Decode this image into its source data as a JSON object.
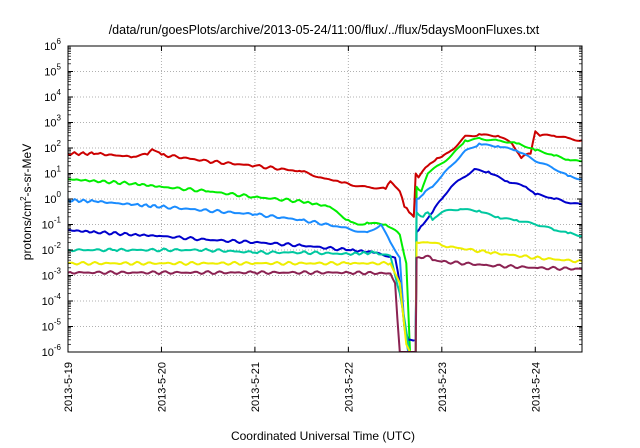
{
  "chart_data": {
    "type": "line",
    "title": "/data/run/goesPlots/archive/2013-05-24/11:00/flux/../flux/5daysMoonFluxes.txt",
    "xlabel": "Coordinated Universal Time (UTC)",
    "ylabel": "protons/cm²-s-sr-MeV",
    "ylabel_parts": [
      "protons/cm",
      "2",
      "-s-sr-MeV"
    ],
    "yscale": "log",
    "ylim": [
      1e-06,
      1000000.0
    ],
    "xlim": [
      0,
      5.5
    ],
    "x_unit": "days since 2013-5-19 00:00",
    "xticks": [
      {
        "x": 0,
        "label": "2013-5-19"
      },
      {
        "x": 1,
        "label": "2013-5-20"
      },
      {
        "x": 2,
        "label": "2013-5-21"
      },
      {
        "x": 3,
        "label": "2013-5-22"
      },
      {
        "x": 4,
        "label": "2013-5-23"
      },
      {
        "x": 5,
        "label": "2013-5-24"
      }
    ],
    "yticks": [
      {
        "exp": "-6"
      },
      {
        "exp": "-5"
      },
      {
        "exp": "-4"
      },
      {
        "exp": "-3"
      },
      {
        "exp": "-2"
      },
      {
        "exp": "-1"
      },
      {
        "exp": "0"
      },
      {
        "exp": "1"
      },
      {
        "exp": "2"
      },
      {
        "exp": "3"
      },
      {
        "exp": "4"
      },
      {
        "exp": "5"
      },
      {
        "exp": "6"
      }
    ],
    "grid": true,
    "series": [
      {
        "color": "#cc0000",
        "points": [
          [
            0,
            60
          ],
          [
            0.3,
            60
          ],
          [
            0.7,
            45
          ],
          [
            0.85,
            55
          ],
          [
            0.9,
            90
          ],
          [
            1.0,
            55
          ],
          [
            1.5,
            30
          ],
          [
            2.0,
            20
          ],
          [
            2.5,
            12
          ],
          [
            2.7,
            7
          ],
          [
            3.0,
            4
          ],
          [
            3.2,
            3
          ],
          [
            3.4,
            2.5
          ],
          [
            3.45,
            5
          ],
          [
            3.55,
            2
          ],
          [
            3.6,
            0.5
          ],
          [
            3.65,
            0.3
          ],
          [
            3.7,
            0.2
          ],
          [
            3.72,
            10
          ],
          [
            3.75,
            7
          ],
          [
            3.85,
            20
          ],
          [
            3.95,
            40
          ],
          [
            4.0,
            45
          ],
          [
            4.1,
            80
          ],
          [
            4.25,
            300
          ],
          [
            4.4,
            350
          ],
          [
            4.6,
            300
          ],
          [
            4.75,
            150
          ],
          [
            4.85,
            40
          ],
          [
            4.95,
            60
          ],
          [
            5.0,
            450
          ],
          [
            5.05,
            300
          ],
          [
            5.2,
            300
          ],
          [
            5.35,
            250
          ],
          [
            5.5,
            200
          ]
        ]
      },
      {
        "color": "#00ee00",
        "points": [
          [
            0,
            6
          ],
          [
            0.3,
            5
          ],
          [
            0.7,
            4
          ],
          [
            1.0,
            3
          ],
          [
            1.5,
            2
          ],
          [
            2.0,
            1.2
          ],
          [
            2.5,
            0.8
          ],
          [
            2.8,
            0.5
          ],
          [
            3.0,
            0.15
          ],
          [
            3.1,
            0.1
          ],
          [
            3.2,
            0.12
          ],
          [
            3.4,
            0.1
          ],
          [
            3.55,
            0.04
          ],
          [
            3.62,
            0.003
          ],
          [
            3.66,
            1e-06
          ],
          [
            3.72,
            1e-06
          ],
          [
            3.73,
            3
          ],
          [
            3.78,
            2
          ],
          [
            3.85,
            10
          ],
          [
            4.0,
            25
          ],
          [
            4.1,
            50
          ],
          [
            4.25,
            200
          ],
          [
            4.4,
            250
          ],
          [
            4.6,
            200
          ],
          [
            4.8,
            150
          ],
          [
            5.0,
            80
          ],
          [
            5.2,
            50
          ],
          [
            5.35,
            35
          ],
          [
            5.5,
            30
          ]
        ]
      },
      {
        "color": "#1a8cff",
        "points": [
          [
            0,
            0.9
          ],
          [
            0.3,
            0.8
          ],
          [
            0.7,
            0.6
          ],
          [
            1.0,
            0.5
          ],
          [
            1.5,
            0.35
          ],
          [
            2.0,
            0.25
          ],
          [
            2.5,
            0.15
          ],
          [
            3.0,
            0.07
          ],
          [
            3.2,
            0.05
          ],
          [
            3.35,
            0.1
          ],
          [
            3.45,
            0.02
          ],
          [
            3.55,
            0.005
          ],
          [
            3.6,
            1e-05
          ],
          [
            3.64,
            1e-06
          ],
          [
            3.72,
            1e-06
          ],
          [
            3.73,
            1
          ],
          [
            3.8,
            1.5
          ],
          [
            3.9,
            3
          ],
          [
            4.0,
            8
          ],
          [
            4.1,
            20
          ],
          [
            4.25,
            80
          ],
          [
            4.4,
            150
          ],
          [
            4.6,
            120
          ],
          [
            4.8,
            80
          ],
          [
            5.0,
            30
          ],
          [
            5.2,
            15
          ],
          [
            5.35,
            8
          ],
          [
            5.5,
            6
          ]
        ]
      },
      {
        "color": "#0000cc",
        "points": [
          [
            0,
            0.06
          ],
          [
            0.3,
            0.05
          ],
          [
            0.7,
            0.04
          ],
          [
            1.0,
            0.035
          ],
          [
            1.5,
            0.025
          ],
          [
            2.0,
            0.02
          ],
          [
            2.5,
            0.015
          ],
          [
            3.0,
            0.01
          ],
          [
            3.3,
            0.008
          ],
          [
            3.5,
            0.005
          ],
          [
            3.55,
            0.0005
          ],
          [
            3.6,
            1e-05
          ],
          [
            3.64,
            3e-06
          ],
          [
            3.72,
            3e-06
          ],
          [
            3.73,
            0.05
          ],
          [
            3.8,
            0.1
          ],
          [
            3.9,
            0.3
          ],
          [
            4.0,
            1
          ],
          [
            4.1,
            3
          ],
          [
            4.2,
            6
          ],
          [
            4.35,
            15
          ],
          [
            4.5,
            12
          ],
          [
            4.7,
            5
          ],
          [
            4.9,
            3
          ],
          [
            5.0,
            1.5
          ],
          [
            5.2,
            1
          ],
          [
            5.35,
            0.7
          ],
          [
            5.5,
            0.6
          ]
        ]
      },
      {
        "color": "#00c8a0",
        "points": [
          [
            0,
            0.01
          ],
          [
            0.5,
            0.01
          ],
          [
            1.0,
            0.01
          ],
          [
            1.5,
            0.01
          ],
          [
            2.0,
            0.008
          ],
          [
            2.5,
            0.008
          ],
          [
            3.0,
            0.007
          ],
          [
            3.3,
            0.008
          ],
          [
            3.45,
            0.006
          ],
          [
            3.55,
            0.0002
          ],
          [
            3.6,
            2e-05
          ],
          [
            3.65,
            1e-06
          ],
          [
            3.72,
            1e-06
          ],
          [
            3.73,
            0.3
          ],
          [
            3.8,
            0.2
          ],
          [
            3.85,
            0.3
          ],
          [
            3.9,
            0.15
          ],
          [
            4.0,
            0.3
          ],
          [
            4.2,
            0.4
          ],
          [
            4.4,
            0.35
          ],
          [
            4.6,
            0.2
          ],
          [
            4.8,
            0.15
          ],
          [
            5.0,
            0.1
          ],
          [
            5.2,
            0.06
          ],
          [
            5.35,
            0.045
          ],
          [
            5.5,
            0.035
          ]
        ]
      },
      {
        "color": "#eeee00",
        "points": [
          [
            0,
            0.003
          ],
          [
            1.0,
            0.003
          ],
          [
            2.0,
            0.003
          ],
          [
            3.0,
            0.003
          ],
          [
            3.45,
            0.003
          ],
          [
            3.55,
            0.0005
          ],
          [
            3.62,
            2e-06
          ],
          [
            3.66,
            1e-06
          ],
          [
            3.72,
            1e-06
          ],
          [
            3.73,
            0.02
          ],
          [
            3.85,
            0.02
          ],
          [
            4.0,
            0.015
          ],
          [
            4.5,
            0.008
          ],
          [
            5.0,
            0.005
          ],
          [
            5.5,
            0.0035
          ]
        ]
      },
      {
        "color": "#8b2252",
        "points": [
          [
            0,
            0.0013
          ],
          [
            1.0,
            0.0013
          ],
          [
            2.0,
            0.0013
          ],
          [
            3.0,
            0.0013
          ],
          [
            3.45,
            0.0012
          ],
          [
            3.5,
            0.0005
          ],
          [
            3.55,
            1e-06
          ],
          [
            3.72,
            1e-06
          ],
          [
            3.73,
            0.005
          ],
          [
            3.85,
            0.006
          ],
          [
            3.9,
            0.004
          ],
          [
            4.0,
            0.0035
          ],
          [
            4.5,
            0.0025
          ],
          [
            5.0,
            0.002
          ],
          [
            5.5,
            0.0018
          ]
        ]
      }
    ]
  }
}
